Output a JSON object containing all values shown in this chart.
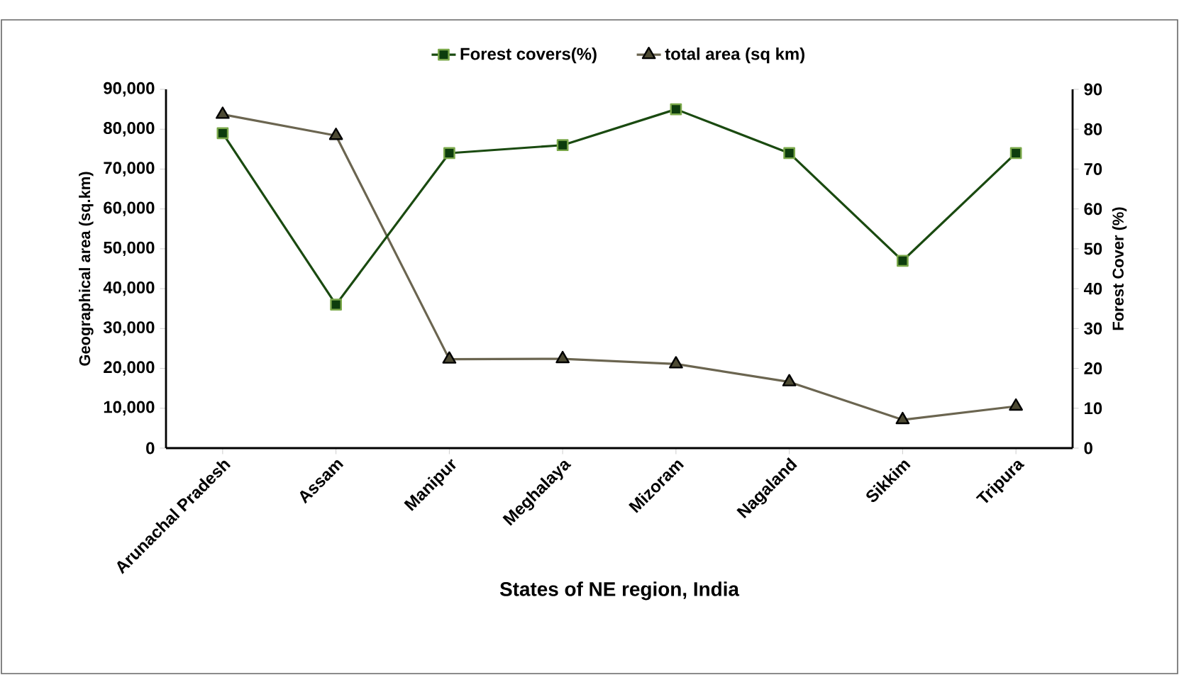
{
  "chart_data": {
    "type": "line",
    "xlabel": "States of NE region, India",
    "ylabel": "Geographical area (sq.km)",
    "y2label": "Forest Cover (%)",
    "categories": [
      "Arunachal Pradesh",
      "Assam",
      "Manipur",
      "Meghalaya",
      "Mizoram",
      "Nagaland",
      "Sikkim",
      "Tripura"
    ],
    "series": [
      {
        "name": "Forest covers(%)",
        "color": "#0d3d0d",
        "axis": "y2",
        "marker": "square",
        "values": [
          79,
          36,
          74,
          76,
          85,
          74,
          47,
          74
        ]
      },
      {
        "name": "total area (sq km)",
        "color": "#4d4a33",
        "axis": "y",
        "marker": "triangle",
        "values": [
          83700,
          78400,
          22300,
          22400,
          21100,
          16600,
          7100,
          10500
        ]
      }
    ],
    "ylim": [
      0,
      90000
    ],
    "yticks": [
      {
        "value": 0,
        "label": "0"
      },
      {
        "value": 10000,
        "label": "10,000"
      },
      {
        "value": 20000,
        "label": "20,000"
      },
      {
        "value": 30000,
        "label": "30,000"
      },
      {
        "value": 40000,
        "label": "40,000"
      },
      {
        "value": 50000,
        "label": "50,000"
      },
      {
        "value": 60000,
        "label": "60,000"
      },
      {
        "value": 70000,
        "label": "70,000"
      },
      {
        "value": 80000,
        "label": "80,000"
      },
      {
        "value": 90000,
        "label": "90,000"
      }
    ],
    "y2lim": [
      0,
      90
    ],
    "y2ticks": [
      0,
      10,
      20,
      30,
      40,
      50,
      60,
      70,
      80,
      90
    ],
    "legend": "top",
    "grid": false,
    "line_style": "solid"
  }
}
